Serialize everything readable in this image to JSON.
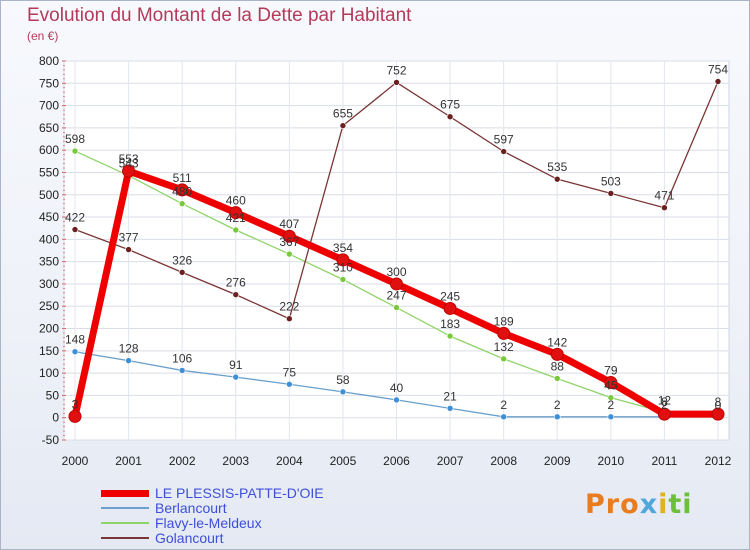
{
  "title": "Evolution du Montant de la Dette par Habitant",
  "subtitle": "(en €)",
  "logo": {
    "text": "Proxiti",
    "colors": [
      "#e87c1f",
      "#4fa7dc",
      "#e0b21c",
      "#6cbf3c"
    ]
  },
  "chart_data": {
    "type": "line",
    "title": "Evolution du Montant de la Dette par Habitant",
    "ylabel": "(en €)",
    "xlabel": "",
    "ylim": [
      -50,
      800
    ],
    "yticks": [
      -50,
      0,
      50,
      100,
      150,
      200,
      250,
      300,
      350,
      400,
      450,
      500,
      550,
      600,
      650,
      700,
      750,
      800
    ],
    "categories": [
      "2000",
      "2001",
      "2002",
      "2003",
      "2004",
      "2005",
      "2006",
      "2007",
      "2008",
      "2009",
      "2010",
      "2011",
      "2012"
    ],
    "grid": true,
    "legend_position": "bottom-left",
    "series": [
      {
        "name": "LE PLESSIS-PATTE-D'OIE",
        "color": "#ee0000",
        "marker": "#e01010",
        "width": 7,
        "radius": 6,
        "values": [
          3,
          553,
          511,
          460,
          407,
          354,
          300,
          245,
          189,
          142,
          79,
          8,
          8
        ],
        "labels": [
          "3",
          "553",
          "511",
          "460",
          "407",
          "354",
          "300",
          "245",
          "189",
          "142",
          "79",
          "8",
          "8"
        ]
      },
      {
        "name": "Berlancourt",
        "color": "#6aa0cc",
        "marker": "#3d8fd6",
        "width": 1.3,
        "radius": 3,
        "values": [
          148,
          128,
          106,
          91,
          75,
          58,
          40,
          21,
          2,
          2,
          2,
          2,
          null
        ],
        "labels": [
          "148",
          "128",
          "106",
          "91",
          "75",
          "58",
          "40",
          "21",
          "2",
          "2",
          "2",
          "2",
          ""
        ]
      },
      {
        "name": "Flavy-le-Meldeux",
        "color": "#8fd46a",
        "marker": "#79c93d",
        "width": 1.3,
        "radius": 3,
        "values": [
          598,
          543,
          480,
          421,
          367,
          310,
          247,
          183,
          132,
          88,
          45,
          12,
          0
        ],
        "labels": [
          "598",
          "543",
          "480",
          "421",
          "367",
          "310",
          "247",
          "183",
          "132",
          "88",
          "45",
          "12",
          "0"
        ]
      },
      {
        "name": "Golancourt",
        "color": "#7a3535",
        "marker": "#6b1f1f",
        "width": 1.3,
        "radius": 3,
        "values": [
          422,
          377,
          326,
          276,
          222,
          655,
          752,
          675,
          597,
          535,
          503,
          471,
          754
        ],
        "labels": [
          "422",
          "377",
          "326",
          "276",
          "222",
          "655",
          "752",
          "675",
          "597",
          "535",
          "503",
          "471",
          "754"
        ]
      }
    ]
  }
}
